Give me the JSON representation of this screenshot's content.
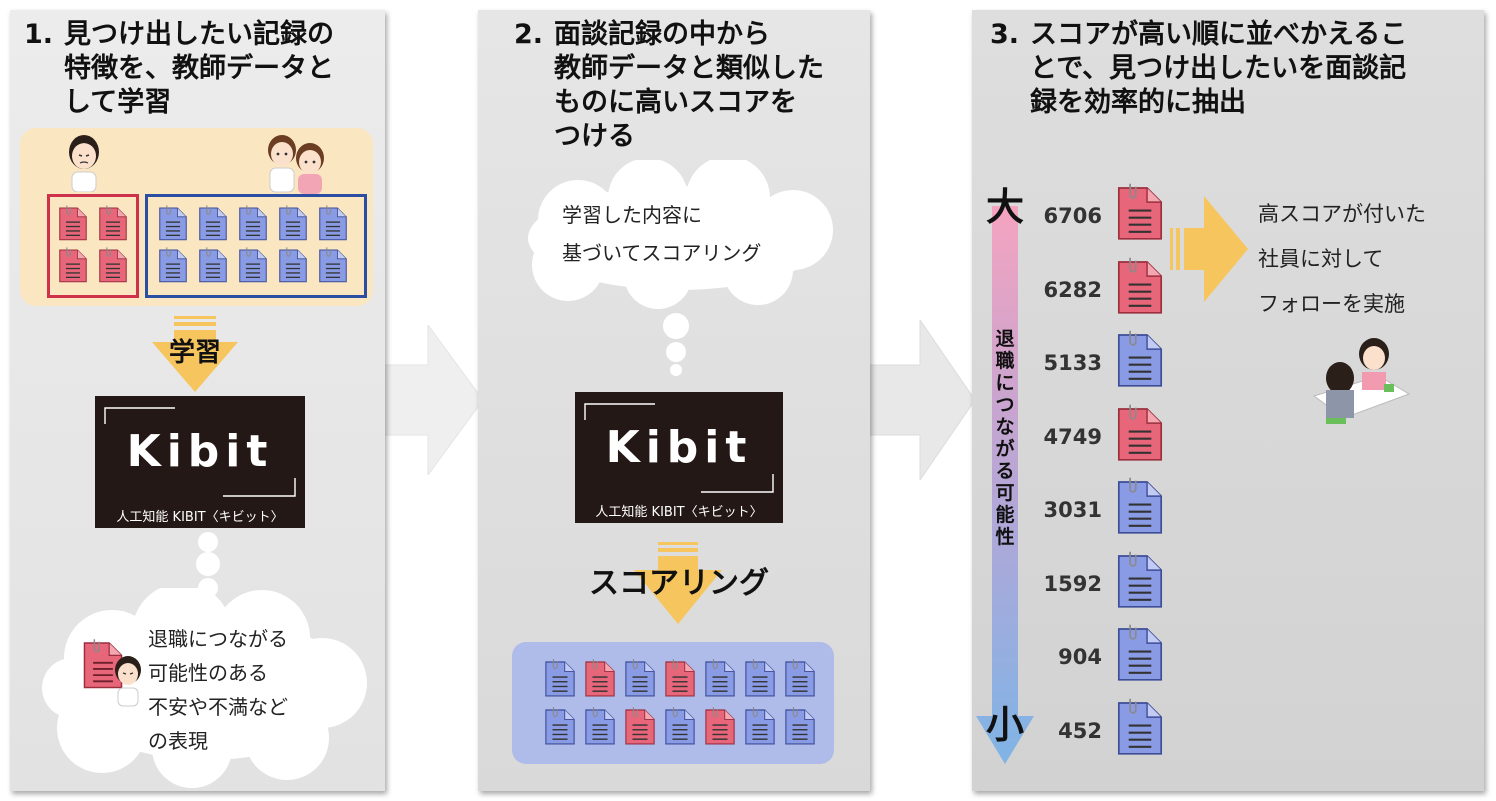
{
  "steps": [
    {
      "number": "1.",
      "title_lines": [
        "見つけ出したい記録の",
        "特徴を、教師データと",
        "して学習"
      ]
    },
    {
      "number": "2.",
      "title_lines": [
        "面談記録の中から",
        "教師データと類似した",
        "ものに高いスコアを",
        "つける"
      ]
    },
    {
      "number": "3.",
      "title_lines": [
        "スコアが高い順に並べかえるこ",
        "とで、見つけ出したいを面談記",
        "録を効率的に抽出"
      ]
    }
  ],
  "learn_label": "学習",
  "kibit": {
    "logo": "Kibit",
    "caption": "人工知能 KIBIT〈キビット〉"
  },
  "cloud1_lines": [
    "退職につながる",
    "可能性のある",
    "不安や不満など",
    "の表現"
  ],
  "cloud2_lines": [
    "学習した内容に",
    "基づいてスコアリング"
  ],
  "scoring_label": "スコアリング",
  "scale": {
    "top": "大",
    "bottom": "小",
    "axis_label": "退職につながる可能性"
  },
  "ranked": [
    {
      "score": "6706",
      "type": "red"
    },
    {
      "score": "6282",
      "type": "red"
    },
    {
      "score": "5133",
      "type": "blue"
    },
    {
      "score": "4749",
      "type": "red"
    },
    {
      "score": "3031",
      "type": "blue"
    },
    {
      "score": "1592",
      "type": "blue"
    },
    {
      "score": "904",
      "type": "blue"
    },
    {
      "score": "452",
      "type": "blue"
    }
  ],
  "followup_lines": [
    "高スコアが付いた",
    "社員に対して",
    "フォローを実施"
  ],
  "colors": {
    "red_doc": "#e8667a",
    "blue_doc": "#8a9be6",
    "arrow_yellow": "#f7c55e",
    "red_frame": "#d0314a",
    "blue_frame": "#2b4ea3"
  },
  "grid1_blue_rows": 2,
  "grid1_blue_cols": 5,
  "grid2_pattern": [
    "blue",
    "red",
    "blue",
    "red",
    "blue",
    "blue",
    "blue",
    "blue",
    "blue",
    "red",
    "blue",
    "red",
    "blue",
    "blue"
  ]
}
